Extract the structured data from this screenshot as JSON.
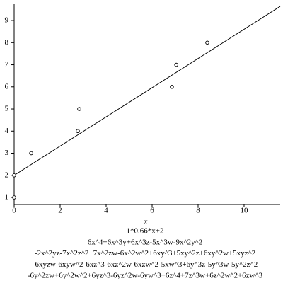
{
  "chart_data": {
    "type": "scatter",
    "x": [
      0,
      0,
      0.74,
      2.77,
      2.83,
      6.86,
      7.05,
      8.4
    ],
    "values": [
      1,
      2,
      3,
      4,
      5,
      6,
      7,
      8
    ],
    "fit_line": {
      "x": [
        0,
        11.57
      ],
      "values": [
        2,
        9.64
      ]
    },
    "xlim": [
      0,
      11.57
    ],
    "ylim": [
      0.68,
      9.77
    ],
    "xticks": [
      0,
      2,
      4,
      6,
      8,
      10
    ],
    "yticks": [
      1,
      2,
      3,
      4,
      5,
      6,
      7,
      8,
      9
    ],
    "x_label": "x",
    "caption_lines": [
      "1*0.66*x+2",
      "6x^4+6x^3y+6x^3z-5x^3w-9x^2y^2",
      "-2x^2yz-7x^2z^2+7x^2zw-6x^2w^2+6xy^3+5xy^2z+6xy^2w+5xyz^2",
      "-6xyzw-6xyw^2-6xz^3-6xz^2w-6xzw^2-5xw^3+6y^3z-5y^3w-5y^2z^2",
      "-6y^2zw+6y^2w^2+6yz^3-6yz^2w-6yw^3+6z^4+7z^3w+6z^2w^2+6zw^3"
    ]
  }
}
